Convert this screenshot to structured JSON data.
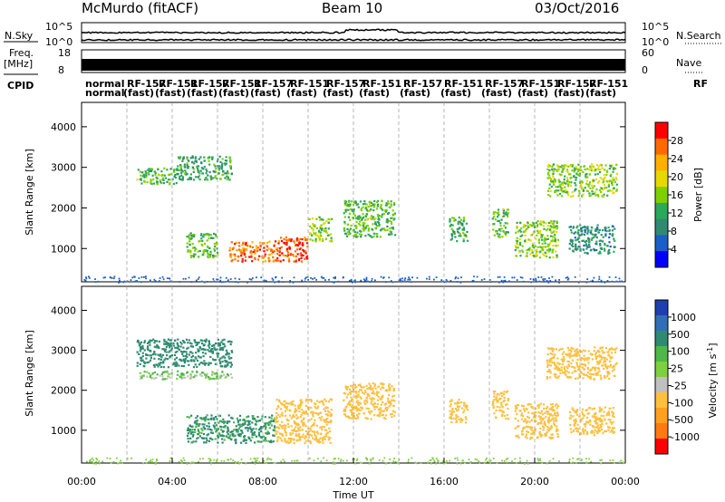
{
  "header": {
    "station": "McMurdo (fitACF)",
    "beam": "Beam 10",
    "date": "03/Oct/2016"
  },
  "top_panels": {
    "n_sky_label": "N.Sky",
    "n_search_label": "N.Search",
    "sky_ticks": [
      "10^5",
      "10^0"
    ],
    "search_ticks": [
      "10^5",
      "10^0"
    ],
    "freq_label": "Freq.",
    "freq_unit": "[MHz]",
    "freq_ticks": [
      "18",
      "8"
    ],
    "nave_label": "Nave",
    "nave_ticks": [
      "60",
      "0"
    ],
    "cpid_label": "CPID",
    "cpid_texts": [
      "normal",
      "normal",
      "(fast)",
      "RF-157",
      "RF-151",
      "RF"
    ]
  },
  "colorbars": {
    "power": {
      "label": "Power [dB]",
      "ticks": [
        "28",
        "24",
        "20",
        "16",
        "12",
        "8",
        "4"
      ],
      "colors": [
        "#ff0000",
        "#ff6a00",
        "#ffb000",
        "#e8d800",
        "#7fd000",
        "#2ca85a",
        "#2e8b72",
        "#1a5fc8",
        "#0000ff"
      ]
    },
    "velocity": {
      "label": "Velocity [m s",
      "label_sup": "-1",
      "label_end": "]",
      "ticks": [
        "1000",
        "500",
        "100",
        "25",
        "-25",
        "-100",
        "-500",
        "-1000"
      ],
      "colors": [
        "#1e3fb0",
        "#2f6fb8",
        "#2e8b72",
        "#4fb848",
        "#7fd040",
        "#c0c0c0",
        "#ffc040",
        "#ffa020",
        "#ff7a10",
        "#ff0000"
      ]
    }
  },
  "chart_data": {
    "type": "heatmap",
    "xlabel": "Time UT",
    "ylabel": "Slant Range [km]",
    "x_ticks": [
      "00:00",
      "04:00",
      "08:00",
      "12:00",
      "16:00",
      "20:00",
      "00:00"
    ],
    "x_range_hours": [
      0,
      24
    ],
    "y_ticks": [
      1000,
      2000,
      3000,
      4000
    ],
    "y_range_km": [
      180,
      4600
    ],
    "power_regions": [
      {
        "t0": 2.4,
        "t1": 4.2,
        "r0": 2600,
        "r1": 3000,
        "value": 14
      },
      {
        "t0": 4.2,
        "t1": 6.6,
        "r0": 2700,
        "r1": 3300,
        "value": 12
      },
      {
        "t0": 4.6,
        "t1": 6.0,
        "r0": 800,
        "r1": 1400,
        "value": 14
      },
      {
        "t0": 6.5,
        "t1": 8.5,
        "r0": 700,
        "r1": 1200,
        "value": 26
      },
      {
        "t0": 8.5,
        "t1": 10.0,
        "r0": 700,
        "r1": 1300,
        "value": 28
      },
      {
        "t0": 10.0,
        "t1": 11.0,
        "r0": 1200,
        "r1": 1800,
        "value": 16
      },
      {
        "t0": 11.5,
        "t1": 13.8,
        "r0": 1300,
        "r1": 2200,
        "value": 14
      },
      {
        "t0": 16.2,
        "t1": 17.0,
        "r0": 1200,
        "r1": 1800,
        "value": 12
      },
      {
        "t0": 18.1,
        "t1": 18.8,
        "r0": 1300,
        "r1": 2000,
        "value": 14
      },
      {
        "t0": 19.1,
        "t1": 21.0,
        "r0": 800,
        "r1": 1700,
        "value": 16
      },
      {
        "t0": 20.5,
        "t1": 23.6,
        "r0": 2300,
        "r1": 3100,
        "value": 16
      },
      {
        "t0": 21.5,
        "t1": 23.5,
        "r0": 900,
        "r1": 1600,
        "value": 10
      }
    ],
    "velocity_regions": [
      {
        "t0": 2.4,
        "t1": 6.6,
        "r0": 2600,
        "r1": 3300,
        "value": 300
      },
      {
        "t0": 2.4,
        "t1": 6.6,
        "r0": 2300,
        "r1": 2500,
        "value": 0
      },
      {
        "t0": 4.6,
        "t1": 8.5,
        "r0": 700,
        "r1": 1400,
        "value": 150
      },
      {
        "t0": 8.5,
        "t1": 11.0,
        "r0": 700,
        "r1": 1800,
        "value": -300
      },
      {
        "t0": 11.5,
        "t1": 13.8,
        "r0": 1300,
        "r1": 2200,
        "value": -300
      },
      {
        "t0": 16.2,
        "t1": 17.0,
        "r0": 1200,
        "r1": 1800,
        "value": -300
      },
      {
        "t0": 18.1,
        "t1": 18.8,
        "r0": 1300,
        "r1": 2000,
        "value": -300
      },
      {
        "t0": 19.1,
        "t1": 21.0,
        "r0": 800,
        "r1": 1700,
        "value": -400
      },
      {
        "t0": 20.5,
        "t1": 23.6,
        "r0": 2300,
        "r1": 3100,
        "value": -200
      },
      {
        "t0": 21.5,
        "t1": 23.5,
        "r0": 900,
        "r1": 1600,
        "value": -300
      }
    ]
  }
}
